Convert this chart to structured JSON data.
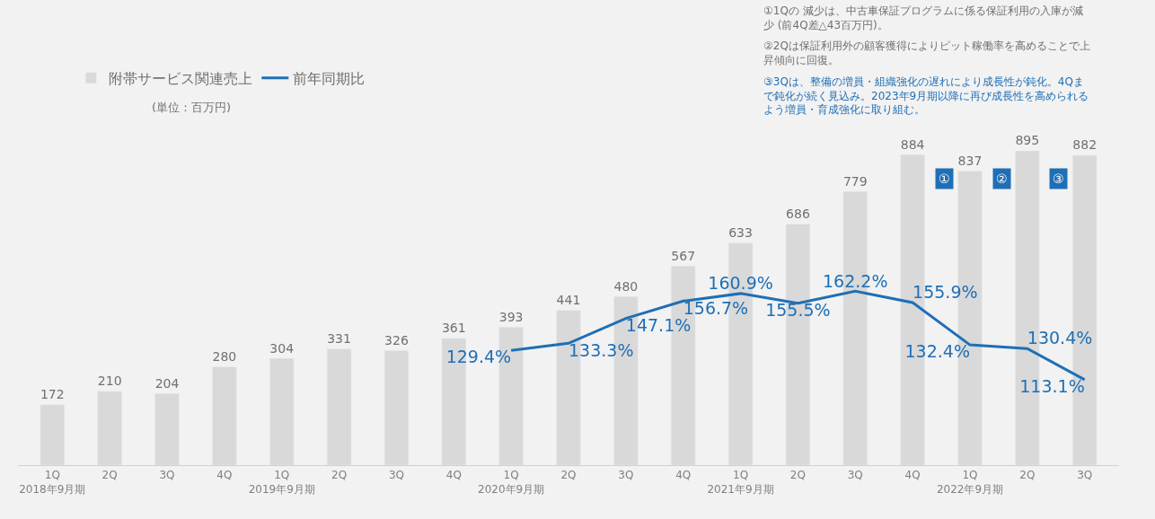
{
  "chart_data": {
    "type": "bar",
    "categories": [
      "1Q\n2018年9月期",
      "2Q",
      "3Q",
      "4Q",
      "1Q\n2019年9月期",
      "2Q",
      "3Q",
      "4Q",
      "1Q\n2020年9月期",
      "2Q",
      "3Q",
      "4Q",
      "1Q\n2021年9月期",
      "2Q",
      "3Q",
      "4Q",
      "1Q\n2022年9月期",
      "2Q",
      "3Q"
    ],
    "series": [
      {
        "name": "附帯サービス関連売上",
        "color": "#d9d9d9",
        "values": [
          172,
          210,
          204,
          280,
          304,
          331,
          326,
          361,
          393,
          441,
          480,
          567,
          633,
          686,
          779,
          884,
          837,
          895,
          882
        ],
        "value_labels": [
          "172",
          "210",
          "204",
          "280",
          "304",
          "331",
          "326",
          "361",
          "393",
          "441",
          "480",
          "567",
          "633",
          "686",
          "779",
          "884",
          "837",
          "895",
          "882"
        ]
      },
      {
        "name": "前年同期比",
        "type": "line",
        "axis": "y2",
        "color": "#1f6fb5",
        "values": [
          null,
          null,
          null,
          null,
          null,
          null,
          null,
          null,
          129.4,
          133.3,
          147.1,
          156.7,
          160.9,
          155.5,
          162.2,
          155.9,
          132.4,
          130.4,
          113.1
        ],
        "value_labels": [
          null,
          null,
          null,
          null,
          null,
          null,
          null,
          null,
          "129.4%",
          "133.3%",
          "147.1%",
          "156.7%",
          "160.9%",
          "155.5%",
          "162.2%",
          "155.9%",
          "132.4%",
          "130.4%",
          "113.1%"
        ]
      }
    ],
    "tick_labels": "x",
    "grid": false,
    "legend": "top left",
    "marker": "none",
    "line_style": "solid",
    "annotations": [
      "(単位：百万円)",
      "①1Qの 減少は、中古車保証プログラムに係る保証利用の入庫が減少 (前4Q差△43百万円)。",
      "②2Qは保証利用外の顧客獲得によりピット稼働率を高めることで上昇傾向に回復。",
      "③3Qは、整備の増員・組織強化の遅れにより成長性が鈍化。4Qまで鈍化が続く見込み。2023年9月期以降に再び成長性を高められるよう増員・育成強化に取り組む。",
      "①",
      "②",
      "③"
    ]
  }
}
